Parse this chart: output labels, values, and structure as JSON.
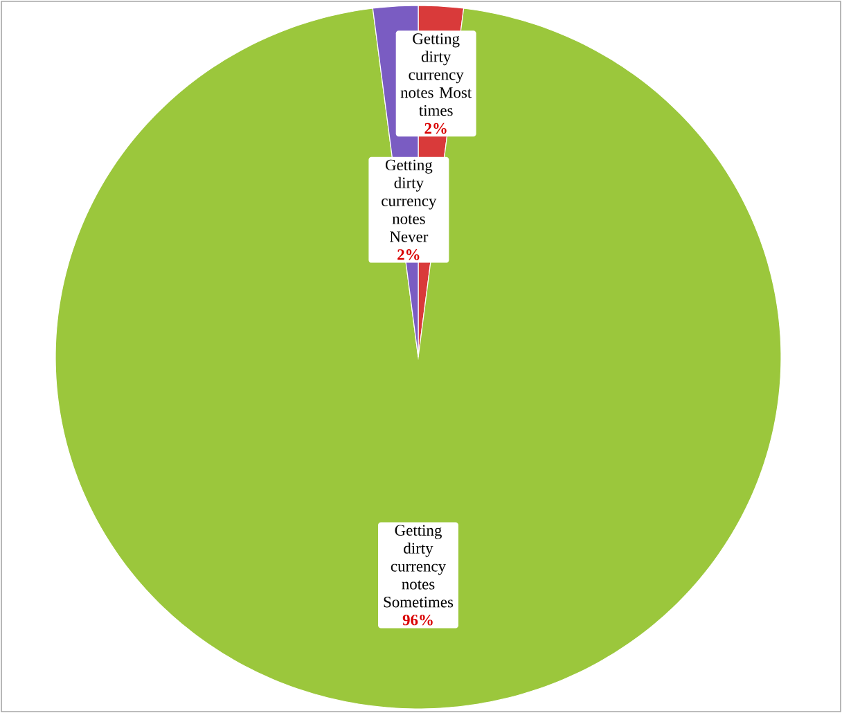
{
  "chart_data": {
    "type": "pie",
    "categories": [
      "Getting dirty currency notes Most times",
      "Getting dirty currency notes Sometimes",
      "Getting dirty currency notes Never"
    ],
    "values": [
      2,
      96,
      2
    ],
    "colors": [
      "#d93a3a",
      "#9bc73c",
      "#7a5cc2"
    ],
    "value_labels": [
      "2%",
      "96%",
      "2%"
    ]
  }
}
